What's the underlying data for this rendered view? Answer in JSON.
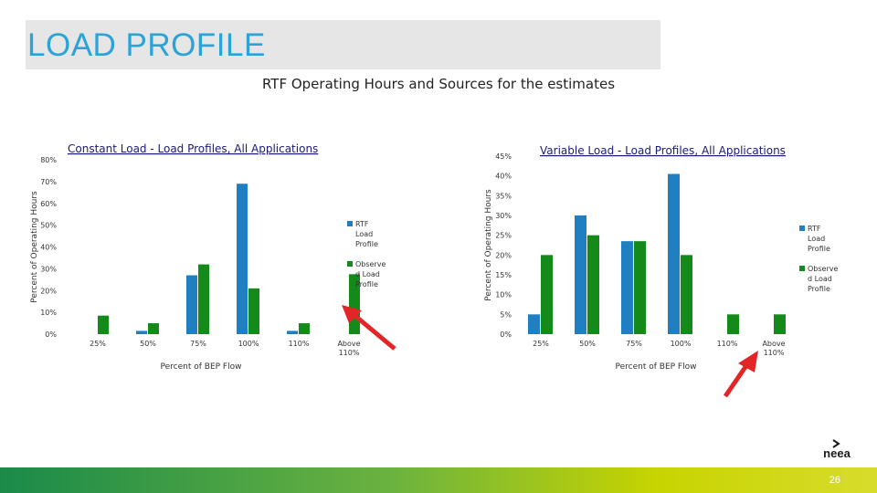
{
  "slide": {
    "title": "LOAD PROFILE",
    "subtitle": "RTF Operating Hours and Sources for the estimates",
    "page_number": "26",
    "logo_text": "neea"
  },
  "colors": {
    "rtf": "#1f7fc0",
    "observed": "#138a1a",
    "arrow": "#e42528",
    "title": "#2aa3d8"
  },
  "chart_data": [
    {
      "type": "bar",
      "title": "Constant Load - Load Profiles, All Applications",
      "xlabel": "Percent of BEP Flow",
      "ylabel": "Percent of Operating Hours",
      "categories": [
        "25%",
        "50%",
        "75%",
        "100%",
        "110%",
        "Above 110%"
      ],
      "series": [
        {
          "name": "RTF Load Profile",
          "values": [
            0,
            1.5,
            27,
            69,
            1.5,
            0
          ]
        },
        {
          "name": "Observed Load Profile",
          "values": [
            8.5,
            5,
            32,
            21,
            5,
            27.5
          ]
        }
      ],
      "ylim": [
        0,
        80
      ],
      "yticks": [
        "0%",
        "10%",
        "20%",
        "30%",
        "40%",
        "50%",
        "60%",
        "70%",
        "80%"
      ],
      "legend": "right",
      "legend_lines": [
        [
          "RTF",
          "Load",
          "Profile"
        ],
        [
          "Observe",
          "d Load",
          "Profile"
        ]
      ]
    },
    {
      "type": "bar",
      "title": "Variable Load - Load Profiles, All Applications",
      "xlabel": "Percent of BEP Flow",
      "ylabel": "Percent of Operating Hours",
      "categories": [
        "25%",
        "50%",
        "75%",
        "100%",
        "110%",
        "Above 110%"
      ],
      "series": [
        {
          "name": "RTF Load Profile",
          "values": [
            5,
            30,
            23.5,
            40.5,
            0,
            0
          ]
        },
        {
          "name": "Observed Load Profile",
          "values": [
            20,
            25,
            23.5,
            20,
            5,
            5
          ]
        }
      ],
      "ylim": [
        0,
        45
      ],
      "yticks": [
        "0%",
        "5%",
        "10%",
        "15%",
        "20%",
        "25%",
        "30%",
        "35%",
        "40%",
        "45%"
      ],
      "legend": "right",
      "legend_lines": [
        [
          "RTF",
          "Load",
          "Profile"
        ],
        [
          "Observe",
          "d Load",
          "Profile"
        ]
      ]
    }
  ]
}
